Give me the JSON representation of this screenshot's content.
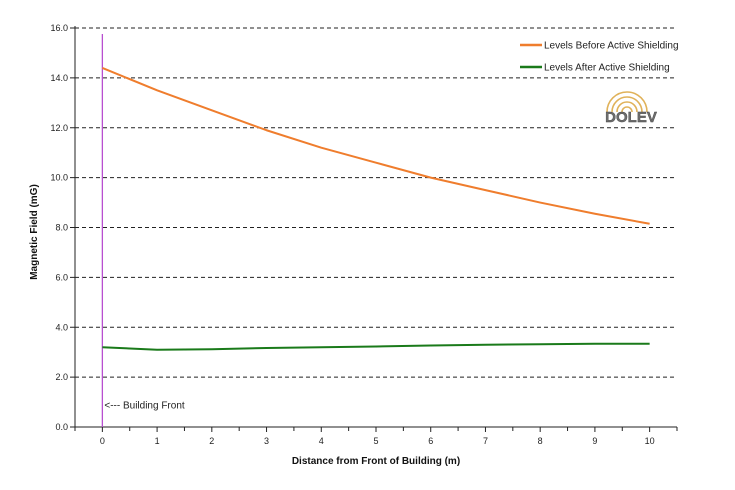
{
  "chart_data": {
    "type": "line",
    "xlabel": "Distance from Front of Building (m)",
    "ylabel": "Magnetic Field (mG)",
    "xlim": [
      -0.5,
      10.5
    ],
    "ylim": [
      0,
      16
    ],
    "x_ticks": [
      0,
      1,
      2,
      3,
      4,
      5,
      6,
      7,
      8,
      9,
      10
    ],
    "y_ticks": [
      0,
      2,
      4,
      6,
      8,
      10,
      12,
      14,
      16
    ],
    "x_tick_labels": [
      "0",
      "1",
      "2",
      "3",
      "4",
      "5",
      "6",
      "7",
      "8",
      "9",
      "10"
    ],
    "y_tick_labels": [
      "0.0",
      "2.0",
      "4.0",
      "6.0",
      "8.0",
      "10.0",
      "12.0",
      "14.0",
      "16.0"
    ],
    "grid": "horizontal-dashed",
    "legend_position": "top-right",
    "x": [
      0,
      1,
      2,
      3,
      4,
      5,
      6,
      7,
      8,
      9,
      10
    ],
    "series": [
      {
        "name": "Levels Before Active Shielding",
        "color": "#ef7d2d",
        "values": [
          14.4,
          13.5,
          12.7,
          11.9,
          11.2,
          10.6,
          10.0,
          9.5,
          9.0,
          8.55,
          8.15
        ]
      },
      {
        "name": "Levels After Active Shielding",
        "color": "#1a7a1a",
        "values": [
          3.2,
          3.1,
          3.12,
          3.17,
          3.2,
          3.23,
          3.27,
          3.3,
          3.32,
          3.34,
          3.34
        ]
      }
    ],
    "annotations": [
      {
        "text": "<--- Building Front",
        "x": 0,
        "line_color": "#b84fd0"
      }
    ]
  },
  "logo": {
    "text": "DOLEV"
  }
}
